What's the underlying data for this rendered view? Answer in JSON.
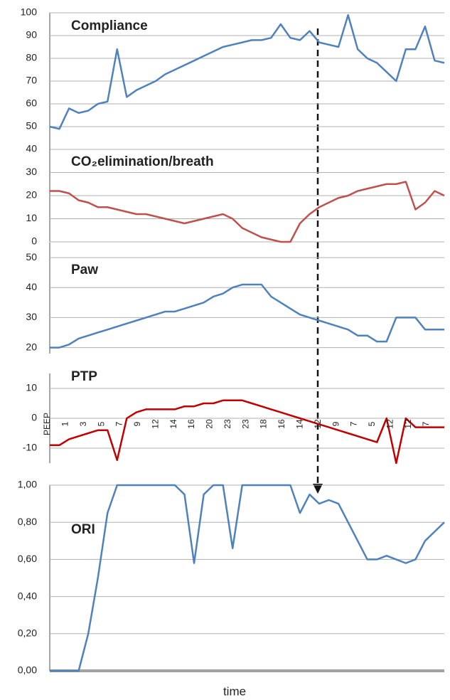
{
  "chart_data": [
    {
      "type": "line",
      "title": "Compliance",
      "color": "#4f81bd",
      "ylim": [
        40,
        100
      ],
      "yticks": [
        40,
        50,
        60,
        70,
        80,
        90,
        100
      ],
      "values": [
        50,
        49,
        58,
        56,
        57,
        60,
        61,
        84,
        63,
        66,
        68,
        70,
        73,
        75,
        77,
        79,
        81,
        83,
        85,
        86,
        87,
        88,
        88,
        89,
        95,
        89,
        88,
        92,
        87,
        86,
        85,
        99,
        84,
        80,
        78,
        74,
        70,
        84,
        84,
        94,
        79,
        78
      ]
    },
    {
      "type": "line",
      "title": "CO₂elimination/breath",
      "color": "#c0504d",
      "ylim": [
        0,
        40
      ],
      "yticks": [
        0,
        10,
        20,
        30
      ],
      "values": [
        22,
        22,
        21,
        18,
        17,
        15,
        15,
        14,
        13,
        12,
        12,
        11,
        10,
        9,
        8,
        9,
        10,
        11,
        12,
        10,
        6,
        4,
        2,
        1,
        0,
        0,
        8,
        12,
        15,
        17,
        19,
        20,
        22,
        23,
        24,
        25,
        25,
        26,
        14,
        17,
        22,
        20
      ]
    },
    {
      "type": "line",
      "title": "Paw",
      "color": "#4f81bd",
      "ylim": [
        18,
        55
      ],
      "yticks": [
        20,
        30,
        40,
        50
      ],
      "values": [
        20,
        20,
        21,
        23,
        24,
        25,
        26,
        27,
        28,
        29,
        30,
        31,
        32,
        32,
        33,
        34,
        35,
        37,
        38,
        40,
        41,
        41,
        41,
        37,
        35,
        33,
        31,
        30,
        29,
        28,
        27,
        26,
        24,
        24,
        22,
        22,
        30,
        30,
        30,
        26,
        26,
        26
      ]
    },
    {
      "type": "line",
      "title": "PTP",
      "color": "#c00000",
      "ylim": [
        -15,
        15
      ],
      "yticks": [
        -10,
        0,
        10
      ],
      "values": [
        -9,
        -9,
        -7,
        -6,
        -5,
        -4,
        -4,
        -14,
        0,
        2,
        3,
        3,
        3,
        3,
        4,
        4,
        5,
        5,
        6,
        6,
        6,
        5,
        4,
        3,
        2,
        1,
        0,
        -1,
        -2,
        -3,
        -4,
        -5,
        -6,
        -7,
        -8,
        0,
        -15,
        0,
        -3,
        -3,
        -3,
        -3
      ]
    },
    {
      "type": "line",
      "title": "ORI",
      "color": "#4f81bd",
      "ylim": [
        0,
        1
      ],
      "yticks": [
        {
          "value": 0,
          "label": "0,00"
        },
        {
          "value": 0.2,
          "label": "0,20"
        },
        {
          "value": 0.4,
          "label": "0,40"
        },
        {
          "value": 0.6,
          "label": "0,60"
        },
        {
          "value": 0.8,
          "label": "0,80"
        },
        {
          "value": 1,
          "label": "1,00"
        }
      ],
      "values": [
        0,
        0,
        0,
        0,
        0.2,
        0.5,
        0.85,
        1,
        1,
        1,
        1,
        1,
        1,
        1,
        0.95,
        0.58,
        0.95,
        1,
        1,
        0.66,
        1,
        1,
        1,
        1,
        1,
        1,
        0.85,
        0.95,
        0.9,
        0.92,
        0.9,
        0.8,
        0.7,
        0.6,
        0.6,
        0.62,
        0.6,
        0.58,
        0.6,
        0.7,
        0.75,
        0.8
      ]
    }
  ],
  "x_axis": {
    "label": "time",
    "peep_steps": [
      "PEEP",
      "1",
      "3",
      "5",
      "7",
      "9",
      "12",
      "14",
      "16",
      "20",
      "23",
      "23",
      "18",
      "16",
      "14",
      "12",
      "9",
      "7",
      "5",
      "12",
      "12",
      "7"
    ]
  }
}
